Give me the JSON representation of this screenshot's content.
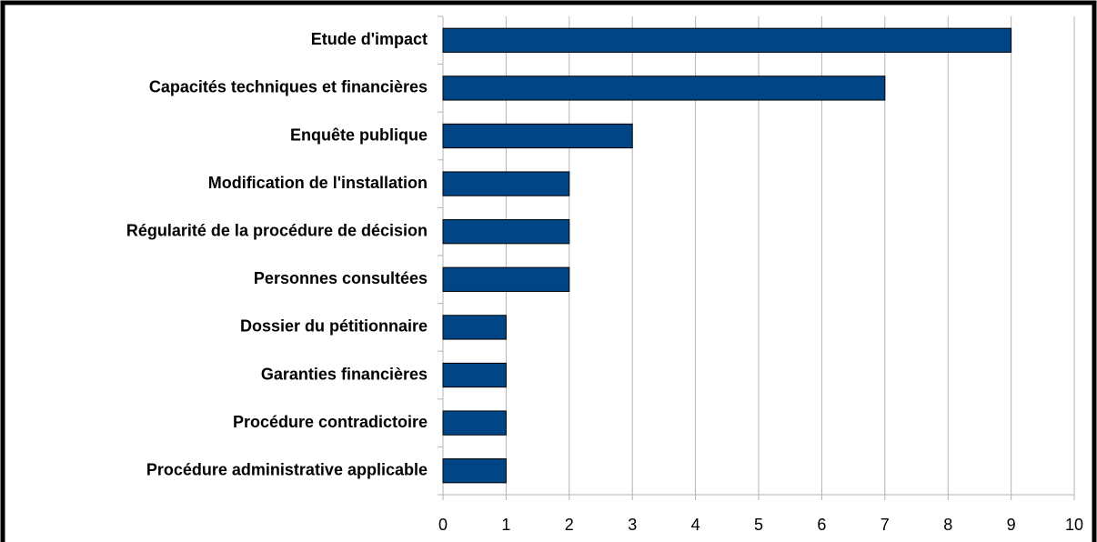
{
  "chart_data": {
    "type": "bar",
    "orientation": "horizontal",
    "categories": [
      "Etude d'impact",
      "Capacités techniques et financières",
      "Enquête publique",
      "Modification de l'installation",
      "Régularité de la procédure de décision",
      "Personnes consultées",
      "Dossier du pétitionnaire",
      "Garanties financières",
      "Procédure contradictoire",
      "Procédure administrative applicable"
    ],
    "values": [
      9,
      7,
      3,
      2,
      2,
      2,
      1,
      1,
      1,
      1
    ],
    "color": "#004586",
    "xlim": [
      0,
      10
    ],
    "xticks": [
      0,
      1,
      2,
      3,
      4,
      5,
      6,
      7,
      8,
      9,
      10
    ],
    "grid": true
  }
}
